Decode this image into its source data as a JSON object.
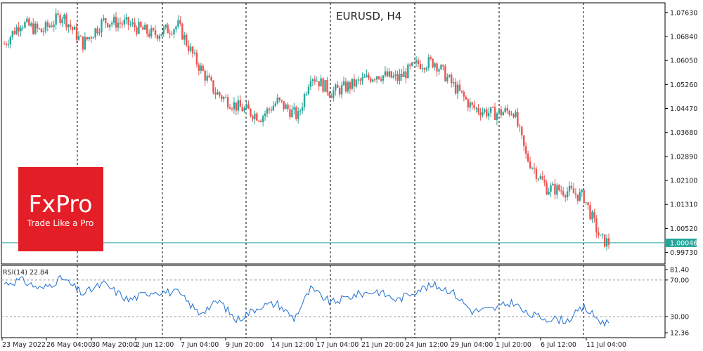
{
  "chart_data": [
    {
      "type": "candlestick",
      "title": "EURUSD, H4",
      "symbol": "EURUSD",
      "timeframe": "H4",
      "ylim": [
        0.9935,
        1.0795
      ],
      "y_ticks": [
        "1.07630",
        "1.06840",
        "1.06050",
        "1.05260",
        "1.04470",
        "1.03680",
        "1.02890",
        "1.02100",
        "1.01310",
        "1.00520",
        "0.99730"
      ],
      "current_price_label": "1.00046",
      "current_price": 1.00046,
      "x_tick_labels": [
        "23 May 2022",
        "26 May 04:00",
        "30 May 20:00",
        "2 Jun 12:00",
        "7 Jun 04:00",
        "9 Jun 20:00",
        "14 Jun 12:00",
        "17 Jun 04:00",
        "21 Jun 20:00",
        "24 Jun 12:00",
        "29 Jun 04:00",
        "1 Jul 20:00",
        "6 Jul 12:00",
        "11 Jul 04:00"
      ],
      "key_points": [
        {
          "i": 0,
          "v": 1.066
        },
        {
          "i": 8,
          "v": 1.073
        },
        {
          "i": 18,
          "v": 1.07
        },
        {
          "i": 28,
          "v": 1.0755
        },
        {
          "i": 38,
          "v": 1.066
        },
        {
          "i": 48,
          "v": 1.0735
        },
        {
          "i": 60,
          "v": 1.0725
        },
        {
          "i": 72,
          "v": 1.069
        },
        {
          "i": 84,
          "v": 1.072
        },
        {
          "i": 92,
          "v": 1.061
        },
        {
          "i": 102,
          "v": 1.05
        },
        {
          "i": 112,
          "v": 1.0455
        },
        {
          "i": 124,
          "v": 1.042
        },
        {
          "i": 132,
          "v": 1.047
        },
        {
          "i": 142,
          "v": 1.042
        },
        {
          "i": 148,
          "v": 1.056
        },
        {
          "i": 158,
          "v": 1.05
        },
        {
          "i": 170,
          "v": 1.053
        },
        {
          "i": 180,
          "v": 1.056
        },
        {
          "i": 190,
          "v": 1.0545
        },
        {
          "i": 200,
          "v": 1.0595
        },
        {
          "i": 208,
          "v": 1.06
        },
        {
          "i": 216,
          "v": 1.053
        },
        {
          "i": 226,
          "v": 1.045
        },
        {
          "i": 236,
          "v": 1.043
        },
        {
          "i": 246,
          "v": 1.044
        },
        {
          "i": 252,
          "v": 1.029
        },
        {
          "i": 262,
          "v": 1.0185
        },
        {
          "i": 272,
          "v": 1.0175
        },
        {
          "i": 280,
          "v": 1.0155
        },
        {
          "i": 288,
          "v": 1.0015
        },
        {
          "i": 292,
          "v": 1.0005
        }
      ],
      "colors": {
        "bull": "#26a69a",
        "bear": "#ef5350",
        "grid": "#000000",
        "price_line": "#26a69a"
      }
    },
    {
      "type": "line",
      "label": "RSI(14) 22.84",
      "ylim": [
        7,
        86
      ],
      "y_ticks": [
        "81.40",
        "70.00",
        "30.00",
        "12.36"
      ],
      "levels": [
        70,
        30
      ],
      "key_points": [
        {
          "i": 0,
          "v": 66
        },
        {
          "i": 8,
          "v": 70
        },
        {
          "i": 18,
          "v": 60
        },
        {
          "i": 28,
          "v": 72
        },
        {
          "i": 38,
          "v": 55
        },
        {
          "i": 48,
          "v": 66
        },
        {
          "i": 60,
          "v": 48
        },
        {
          "i": 72,
          "v": 58
        },
        {
          "i": 84,
          "v": 56
        },
        {
          "i": 94,
          "v": 34
        },
        {
          "i": 104,
          "v": 47
        },
        {
          "i": 112,
          "v": 26
        },
        {
          "i": 124,
          "v": 42
        },
        {
          "i": 132,
          "v": 44
        },
        {
          "i": 140,
          "v": 28
        },
        {
          "i": 148,
          "v": 60
        },
        {
          "i": 158,
          "v": 45
        },
        {
          "i": 170,
          "v": 54
        },
        {
          "i": 180,
          "v": 58
        },
        {
          "i": 190,
          "v": 48
        },
        {
          "i": 200,
          "v": 60
        },
        {
          "i": 208,
          "v": 64
        },
        {
          "i": 216,
          "v": 58
        },
        {
          "i": 226,
          "v": 36
        },
        {
          "i": 236,
          "v": 38
        },
        {
          "i": 246,
          "v": 46
        },
        {
          "i": 252,
          "v": 33
        },
        {
          "i": 262,
          "v": 28
        },
        {
          "i": 272,
          "v": 26
        },
        {
          "i": 280,
          "v": 40
        },
        {
          "i": 288,
          "v": 25
        },
        {
          "i": 292,
          "v": 22.84
        }
      ],
      "color": "#1f6fd1"
    }
  ],
  "logo": {
    "brand": "FxPro",
    "tagline": "Trade Like a Pro",
    "color": "#e41e26"
  }
}
